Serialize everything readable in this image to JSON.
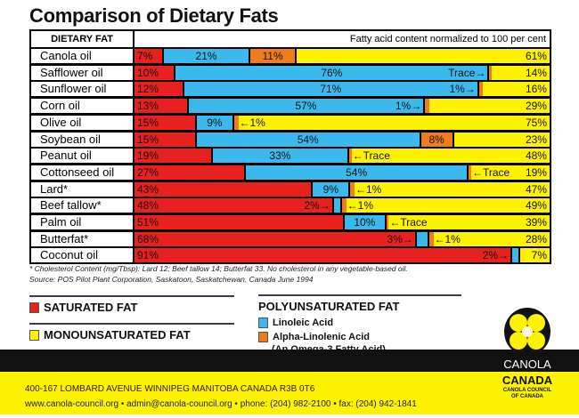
{
  "chart_data": {
    "type": "bar",
    "orientation": "horizontal-stacked-100",
    "title": "Comparison of Dietary Fats",
    "column_header": "DIETARY FAT",
    "value_header": "Fatty acid content normalized to 100 per cent",
    "series_order": [
      "saturated",
      "linoleic",
      "alpha_linolenic",
      "monounsaturated"
    ],
    "colors": {
      "saturated": "#e8201e",
      "linoleic": "#3cb9ec",
      "alpha_linolenic": "#f07d1a",
      "monounsaturated": "#fff200"
    },
    "rows": [
      {
        "name": "Canola oil",
        "values": [
          7,
          21,
          11,
          61
        ],
        "labels": [
          "7%",
          "21%",
          "11%",
          "61%"
        ],
        "annotations": []
      },
      {
        "name": "Safflower oil",
        "values": [
          10,
          76,
          "trace",
          14
        ],
        "labels": [
          "10%",
          "76%",
          "",
          "14%"
        ],
        "annotations": [
          {
            "segment": 2,
            "text": "Trace",
            "side": "left"
          }
        ]
      },
      {
        "name": "Sunflower oil",
        "values": [
          12,
          71,
          1,
          16
        ],
        "labels": [
          "12%",
          "71%",
          "",
          "16%"
        ],
        "annotations": [
          {
            "segment": 2,
            "text": "1%",
            "side": "left"
          }
        ]
      },
      {
        "name": "Corn oil",
        "values": [
          13,
          57,
          1,
          29
        ],
        "labels": [
          "13%",
          "57%",
          "",
          "29%"
        ],
        "annotations": [
          {
            "segment": 2,
            "text": "1%",
            "side": "left"
          }
        ]
      },
      {
        "name": "Olive oil",
        "values": [
          15,
          9,
          1,
          75
        ],
        "labels": [
          "15%",
          "9%",
          "",
          "75%"
        ],
        "annotations": [
          {
            "segment": 2,
            "text": "1%",
            "side": "right"
          }
        ]
      },
      {
        "name": "Soybean oil",
        "values": [
          15,
          54,
          8,
          23
        ],
        "labels": [
          "15%",
          "54%",
          "8%",
          "23%"
        ],
        "annotations": []
      },
      {
        "name": "Peanut oil",
        "values": [
          19,
          33,
          "trace",
          48
        ],
        "labels": [
          "19%",
          "33%",
          "",
          "48%"
        ],
        "annotations": [
          {
            "segment": 2,
            "text": "Trace",
            "side": "right"
          }
        ]
      },
      {
        "name": "Cottonseed oil",
        "values": [
          27,
          54,
          "trace",
          19
        ],
        "labels": [
          "27%",
          "54%",
          "",
          "19%"
        ],
        "annotations": [
          {
            "segment": 2,
            "text": "Trace",
            "side": "right"
          }
        ]
      },
      {
        "name": "Lard*",
        "values": [
          43,
          9,
          1,
          47
        ],
        "labels": [
          "43%",
          "9%",
          "",
          "47%"
        ],
        "annotations": [
          {
            "segment": 2,
            "text": "1%",
            "side": "right"
          }
        ]
      },
      {
        "name": "Beef tallow*",
        "values": [
          48,
          2,
          1,
          49
        ],
        "labels": [
          "48%",
          "",
          "",
          "49%"
        ],
        "annotations": [
          {
            "segment": 1,
            "text": "2%",
            "side": "left"
          },
          {
            "segment": 2,
            "text": "1%",
            "side": "right"
          }
        ]
      },
      {
        "name": "Palm oil",
        "values": [
          51,
          10,
          "trace",
          39
        ],
        "labels": [
          "51%",
          "10%",
          "",
          "39%"
        ],
        "annotations": [
          {
            "segment": 2,
            "text": "Trace",
            "side": "right"
          }
        ]
      },
      {
        "name": "Butterfat*",
        "values": [
          68,
          3,
          1,
          28
        ],
        "labels": [
          "68%",
          "",
          "",
          "28%"
        ],
        "annotations": [
          {
            "segment": 1,
            "text": "3%",
            "side": "left"
          },
          {
            "segment": 2,
            "text": "1%",
            "side": "right"
          }
        ]
      },
      {
        "name": "Coconut oil",
        "values": [
          91,
          2,
          0,
          7
        ],
        "labels": [
          "91%",
          "",
          "",
          "7%"
        ],
        "annotations": [
          {
            "segment": 1,
            "text": "2%",
            "side": "left"
          }
        ]
      }
    ],
    "xlim": [
      0,
      100
    ]
  },
  "footnotes": {
    "cholesterol": "* Cholesterol Content (mg/Tbsp): Lard 12; Beef tallow 14; Butterfat 33. No cholesterol in any vegetable-based oil.",
    "source": "Source: POS Pilot Plant Corporation, Saskatoon, Saskatchewan, Canada June 1994"
  },
  "legend": {
    "saturated": "SATURATED FAT",
    "monounsaturated": "MONOUNSATURATED FAT",
    "polyunsaturated": "POLYUNSATURATED FAT",
    "linoleic": "Linoleic Acid",
    "alpha_linolenic": "Alpha-Linolenic Acid",
    "omega": "(An Omega-3 Fatty Acid)"
  },
  "footer": {
    "address": "400-167 LOMBARD AVENUE WINNIPEG MANITOBA CANADA R3B 0T6",
    "contact": "www.canola-council.org • admin@canola-council.org • phone: (204) 982-2100 • fax: (204) 942-1841"
  },
  "logo": {
    "line1": "CANOLA",
    "line2": "CANADA",
    "line3": "CANOLA COUNCIL",
    "line4": "OF CANADA",
    "icon": "canola-flower-icon"
  }
}
